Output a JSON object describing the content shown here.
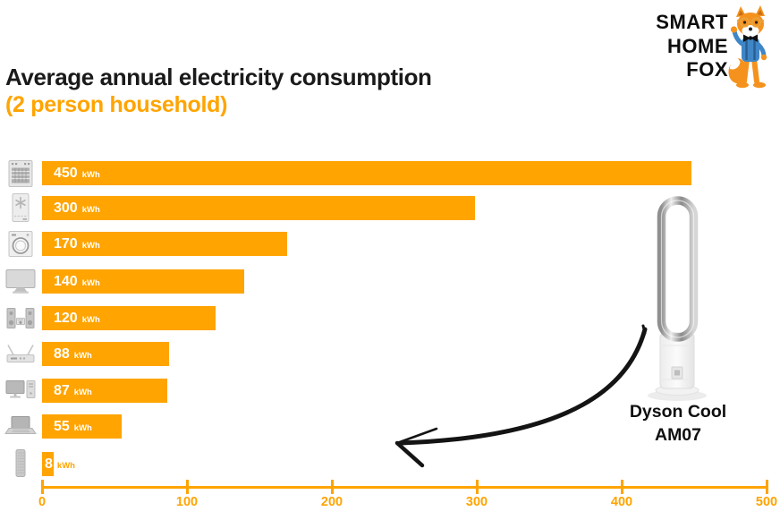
{
  "header": {
    "title": "Average annual electricity consumption",
    "subtitle": "(2 person household)"
  },
  "logo": {
    "lines": [
      "SMART",
      "HOME",
      "FOX"
    ],
    "mascot": "smart-home-fox"
  },
  "chart_data": {
    "type": "bar",
    "orientation": "horizontal",
    "title": "Average annual electricity consumption (2 person household)",
    "unit": "kWh",
    "categories": [
      "oven",
      "fridge-freezer",
      "washing-machine",
      "tv",
      "stereo-system",
      "wifi-router",
      "desktop-computer",
      "laptop",
      "dyson-cool-am07-fan"
    ],
    "values": [
      450,
      300,
      170,
      140,
      120,
      88,
      87,
      55,
      8
    ],
    "labels": [
      "450",
      "300",
      "170",
      "140",
      "120",
      "88",
      "87",
      "55",
      "8"
    ],
    "xlim": [
      0,
      500
    ],
    "ticks": [
      "0",
      "100",
      "200",
      "300",
      "400",
      "500"
    ],
    "bar_color": "#FFA400",
    "grid": false,
    "legend": false
  },
  "annotation": {
    "line1": "Dyson Cool",
    "line2": "AM07"
  },
  "colors": {
    "accent": "#FFA400",
    "title_text": "#1A1A1A",
    "icon_gray": "#C9C9C9",
    "arrow_black": "#141414"
  }
}
